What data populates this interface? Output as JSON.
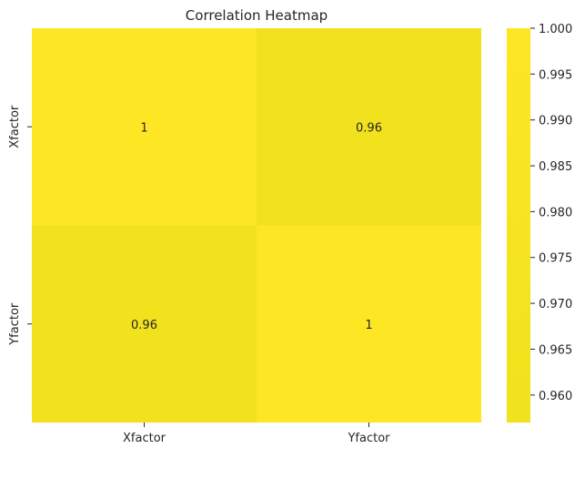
{
  "chart_data": {
    "type": "heatmap",
    "title": "Correlation Heatmap",
    "xlabel": "",
    "ylabel": "",
    "x_categories": [
      "Xfactor",
      "Yfactor"
    ],
    "y_categories": [
      "Xfactor",
      "Yfactor"
    ],
    "values": [
      [
        1,
        0.96
      ],
      [
        0.96,
        1
      ]
    ],
    "annotations": [
      [
        "1",
        "0.96"
      ],
      [
        "0.96",
        "1"
      ]
    ],
    "colorbar": {
      "range": [
        0.957,
        1.0
      ],
      "ticks": [
        "0.960",
        "0.965",
        "0.970",
        "0.975",
        "0.980",
        "0.985",
        "0.990",
        "0.995",
        "1.000"
      ],
      "tick_values": [
        0.96,
        0.965,
        0.97,
        0.975,
        0.98,
        0.985,
        0.99,
        0.995,
        1.0
      ],
      "color_low": "#f0e21c",
      "color_high": "#fde725"
    },
    "grid": false,
    "legend": "colorbar-right"
  }
}
